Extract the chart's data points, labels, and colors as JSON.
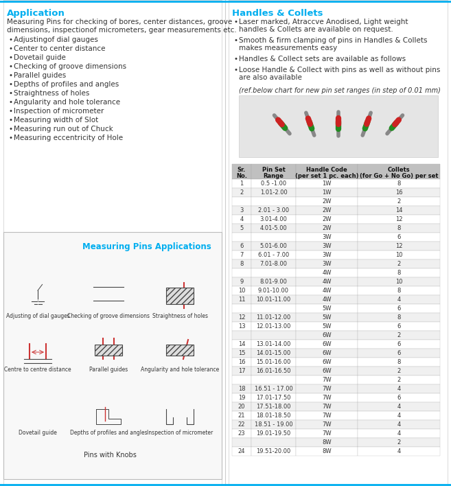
{
  "title_app": "Application",
  "title_handles": "Handles & Collets",
  "app_intro": "Measuring Pins for checking of bores, center distances, groove\ndimensions, inspectionof micrometers, gear measurements etc.",
  "app_bullets": [
    "Adjustingof dial gauges",
    "Center to center distance",
    "Dovetail guide",
    "Checking of groove dimensions",
    "Parallel guides",
    "Depths of profiles and angles",
    "Straightness of holes",
    "Angularity and hole tolerance",
    "Inspection of micrometer",
    "Measuring width of Slot",
    "Measuring run out of Chuck",
    "Measuring eccentricity of Hole"
  ],
  "handles_bullets": [
    "Laser marked, Atraccve Anodised, Light weight\n  handles & Collets are available on request.",
    "Smooth & firm clamping of pins in Handles & Collets\n  makes measurements easy",
    "Handles & Collect sets are available as follows",
    "Loose Handle & Collect with pins as well as without pins\n  are also available"
  ],
  "handles_note": "(ref.below chart for new pin set ranges (in step of 0.01 mm)",
  "diagram_caption": "Measuring Pins Applications",
  "pins_knobs_caption": "Pins with Knobs",
  "table_headers": [
    "Sr.\nNo.",
    "Pin Set\nRange",
    "Handle Code\n(per set 1 pc. each)",
    "Collets\n(for Go + No Go) per set"
  ],
  "table_data": [
    [
      "1",
      "0.5 -1.00",
      "1W",
      "8"
    ],
    [
      "2",
      "1.01-2.00",
      "1W",
      "16"
    ],
    [
      "",
      "",
      "2W",
      "2"
    ],
    [
      "3",
      "2.01 - 3.00",
      "2W",
      "14"
    ],
    [
      "4",
      "3.01-4.00",
      "2W",
      "12"
    ],
    [
      "5",
      "4.01-5.00",
      "2W",
      "8"
    ],
    [
      "",
      "",
      "3W",
      "6"
    ],
    [
      "6",
      "5.01-6.00",
      "3W",
      "12"
    ],
    [
      "7",
      "6.01 - 7.00",
      "3W",
      "10"
    ],
    [
      "8",
      "7.01-8.00",
      "3W",
      "2"
    ],
    [
      "",
      "",
      "4W",
      "8"
    ],
    [
      "9",
      "8.01-9.00",
      "4W",
      "10"
    ],
    [
      "10",
      "9.01-10.00",
      "4W",
      "8"
    ],
    [
      "11",
      "10.01-11.00",
      "4W",
      "4"
    ],
    [
      "",
      "",
      "5W",
      "6"
    ],
    [
      "12",
      "11.01-12.00",
      "5W",
      "8"
    ],
    [
      "13",
      "12.01-13.00",
      "5W",
      "6"
    ],
    [
      "",
      "",
      "6W",
      "2"
    ],
    [
      "14",
      "13.01-14.00",
      "6W",
      "6"
    ],
    [
      "15",
      "14.01-15.00",
      "6W",
      "6"
    ],
    [
      "16",
      "15.01-16.00",
      "6W",
      "8"
    ],
    [
      "17",
      "16.01-16.50",
      "6W",
      "2"
    ],
    [
      "",
      "",
      "7W",
      "2"
    ],
    [
      "18",
      "16.51 - 17.00",
      "7W",
      "4"
    ],
    [
      "19",
      "17.01-17.50",
      "7W",
      "6"
    ],
    [
      "20",
      "17.51-18.00",
      "7W",
      "4"
    ],
    [
      "21",
      "18.01-18.50",
      "7W",
      "4"
    ],
    [
      "22",
      "18.51 - 19.00",
      "7W",
      "4"
    ],
    [
      "23",
      "19.01-19.50",
      "7W",
      "4"
    ],
    [
      "",
      "",
      "8W",
      "2"
    ],
    [
      "24",
      "19.51-20.00",
      "8W",
      "4"
    ]
  ],
  "blue_color": "#00AEEF",
  "header_bg": "#C0C0C0",
  "row_alt1": "#FFFFFF",
  "row_alt2": "#E8E8E8",
  "border_color": "#AAAAAA",
  "text_color": "#333333",
  "bg_color": "#FFFFFF"
}
